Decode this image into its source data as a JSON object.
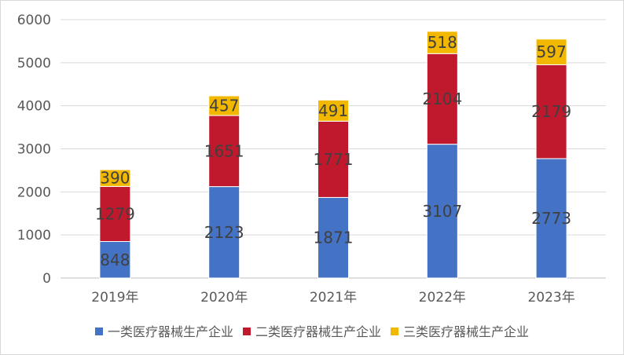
{
  "chart_data": {
    "type": "bar",
    "stacked": true,
    "categories": [
      "2019年",
      "2020年",
      "2021年",
      "2022年",
      "2023年"
    ],
    "series": [
      {
        "name": "一类医疗器械生产企业",
        "color": "#4472c4",
        "values": [
          848,
          2123,
          1871,
          3107,
          2773
        ]
      },
      {
        "name": "二类医疗器械生产企业",
        "color": "#c0182c",
        "values": [
          1279,
          1651,
          1771,
          2104,
          2179
        ]
      },
      {
        "name": "三类医疗器械生产企业",
        "color": "#f2b800",
        "values": [
          390,
          457,
          491,
          518,
          597
        ]
      }
    ],
    "ylim": [
      0,
      6000
    ],
    "yticks": [
      0,
      1000,
      2000,
      3000,
      4000,
      5000,
      6000
    ],
    "grid": true,
    "legend_position": "bottom",
    "data_labels": true
  }
}
